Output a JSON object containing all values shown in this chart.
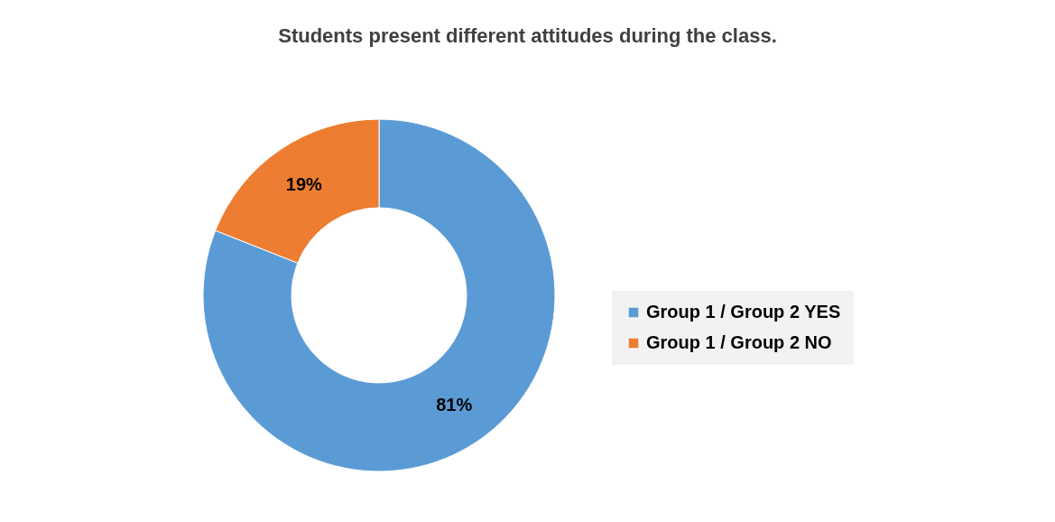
{
  "chart_data": {
    "type": "donut",
    "title": "Students present different attitudes during the class.",
    "categories": [
      "Group 1 / Group 2 YES",
      "Group 1 / Group 2 NO"
    ],
    "values": [
      81,
      19
    ],
    "colors": [
      "#5b9bd5",
      "#ed7d31"
    ],
    "value_labels": [
      "81%",
      "19%"
    ],
    "legend": "right"
  }
}
